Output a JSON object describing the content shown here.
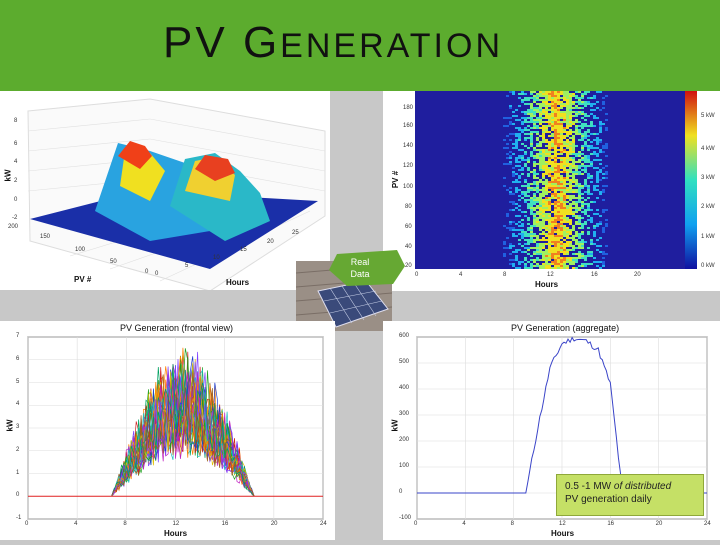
{
  "slide": {
    "title_first": "PV",
    "title_G": "G",
    "title_rest": "ENERATION",
    "colors": {
      "title_bar": "#5cac2e",
      "note_bg": "#c5e066",
      "aggregate_line": "#3a44c8",
      "zero_line": "#e02020"
    }
  },
  "plot3d": {
    "zlabel": "kW",
    "xlabel": "PV #",
    "ylabel": "Hours",
    "z_ticks": [
      "8",
      "6",
      "4",
      "2",
      "0",
      "-2"
    ],
    "pv_ticks": [
      "200",
      "150",
      "100",
      "50",
      "0"
    ],
    "hour_ticks": [
      "0",
      "5",
      "10",
      "15",
      "20",
      "25"
    ]
  },
  "heatmap": {
    "ylabel": "PV #",
    "xlabel": "Hours",
    "y_ticks": [
      "180",
      "160",
      "140",
      "120",
      "100",
      "80",
      "60",
      "40",
      "20"
    ],
    "x_ticks": [
      "0",
      "4",
      "8",
      "12",
      "16",
      "20"
    ],
    "colorbar_ticks": [
      "5 kW",
      "4 kW",
      "3 kW",
      "2 kW",
      "1 kW",
      "0 kW"
    ],
    "colorbar_icon": "colorbar-icon"
  },
  "callout": {
    "line1": "Real",
    "line2": "Data",
    "photo_icon": "solar-panel-photo"
  },
  "frontal": {
    "title": "PV Generation (frontal view)",
    "ylabel": "kW",
    "xlabel": "Hours",
    "y_ticks": [
      "7",
      "6",
      "5",
      "4",
      "3",
      "2",
      "1",
      "0",
      "-1"
    ],
    "x_ticks": [
      "0",
      "4",
      "8",
      "12",
      "16",
      "20",
      "24"
    ]
  },
  "aggregate": {
    "title": "PV Generation (aggregate)",
    "ylabel": "kW",
    "xlabel": "Hours",
    "y_ticks": [
      "600",
      "500",
      "400",
      "300",
      "200",
      "100",
      "0",
      "-100"
    ],
    "x_ticks": [
      "0",
      "4",
      "8",
      "12",
      "16",
      "20",
      "24"
    ]
  },
  "note": {
    "text_a": "0.5 -1 MW ",
    "text_b": "of distributed",
    "text_c": "PV generation daily"
  },
  "chart_data": [
    {
      "type": "area",
      "ylabel": "kW",
      "xlabel": "Hours",
      "x": [
        0,
        4,
        8,
        12,
        16,
        20,
        24
      ],
      "ylim": [
        -1,
        7
      ]
    },
    {
      "type": "line",
      "title": "PV Generation (aggregate)",
      "xlabel": "Hours",
      "ylabel": "kW",
      "ylim": [
        -100,
        600
      ],
      "xlim": [
        0,
        24
      ],
      "x": [
        0,
        9,
        10,
        11,
        12,
        13,
        14,
        15,
        16,
        17,
        18,
        24
      ],
      "values": [
        0,
        0,
        250,
        480,
        575,
        595,
        585,
        550,
        420,
        0,
        0,
        0
      ]
    }
  ]
}
